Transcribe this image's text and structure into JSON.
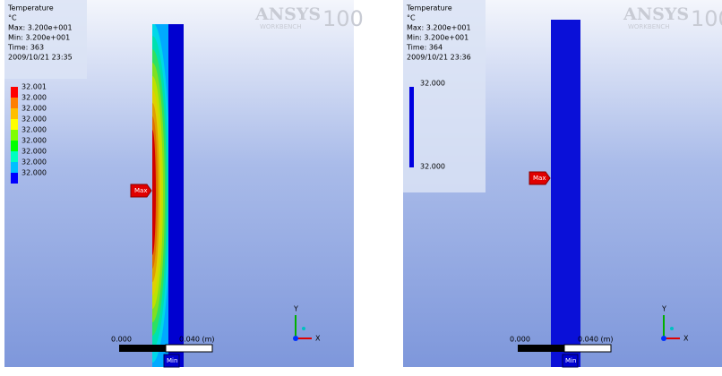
{
  "panels": [
    {
      "legend": {
        "title": "Temperature",
        "unit": "°C",
        "max": "Max: 3.200e+001",
        "min": "Min: 3.200e+001",
        "time": "Time: 363",
        "date": "2009/10/21 23:35",
        "labels": [
          "32.001",
          "32.000",
          "32.000",
          "32.000",
          "32.000",
          "32.000",
          "32.000",
          "32.000",
          "32.000"
        ]
      },
      "logo": {
        "brand": "ANSYS",
        "version": "100",
        "product": "WORKBENCH"
      },
      "max_marker": "Max",
      "min_marker": "Min",
      "scale": {
        "start": "0.000",
        "end": "0.040 (m)"
      },
      "axes": {
        "y": "Y",
        "x": "X"
      }
    },
    {
      "legend": {
        "title": "Temperature",
        "unit": "°C",
        "max": "Max: 3.200e+001",
        "min": "Min: 3.200e+001",
        "time": "Time: 364",
        "date": "2009/10/21 23:36",
        "labels": [
          "32.000",
          "32.000"
        ]
      },
      "logo": {
        "brand": "ANSYS",
        "version": "100",
        "product": "WORKBENCH"
      },
      "max_marker": "Max",
      "min_marker": "Min",
      "scale": {
        "start": "0.000",
        "end": "0.040 (m)"
      },
      "axes": {
        "y": "Y",
        "x": "X"
      }
    }
  ]
}
